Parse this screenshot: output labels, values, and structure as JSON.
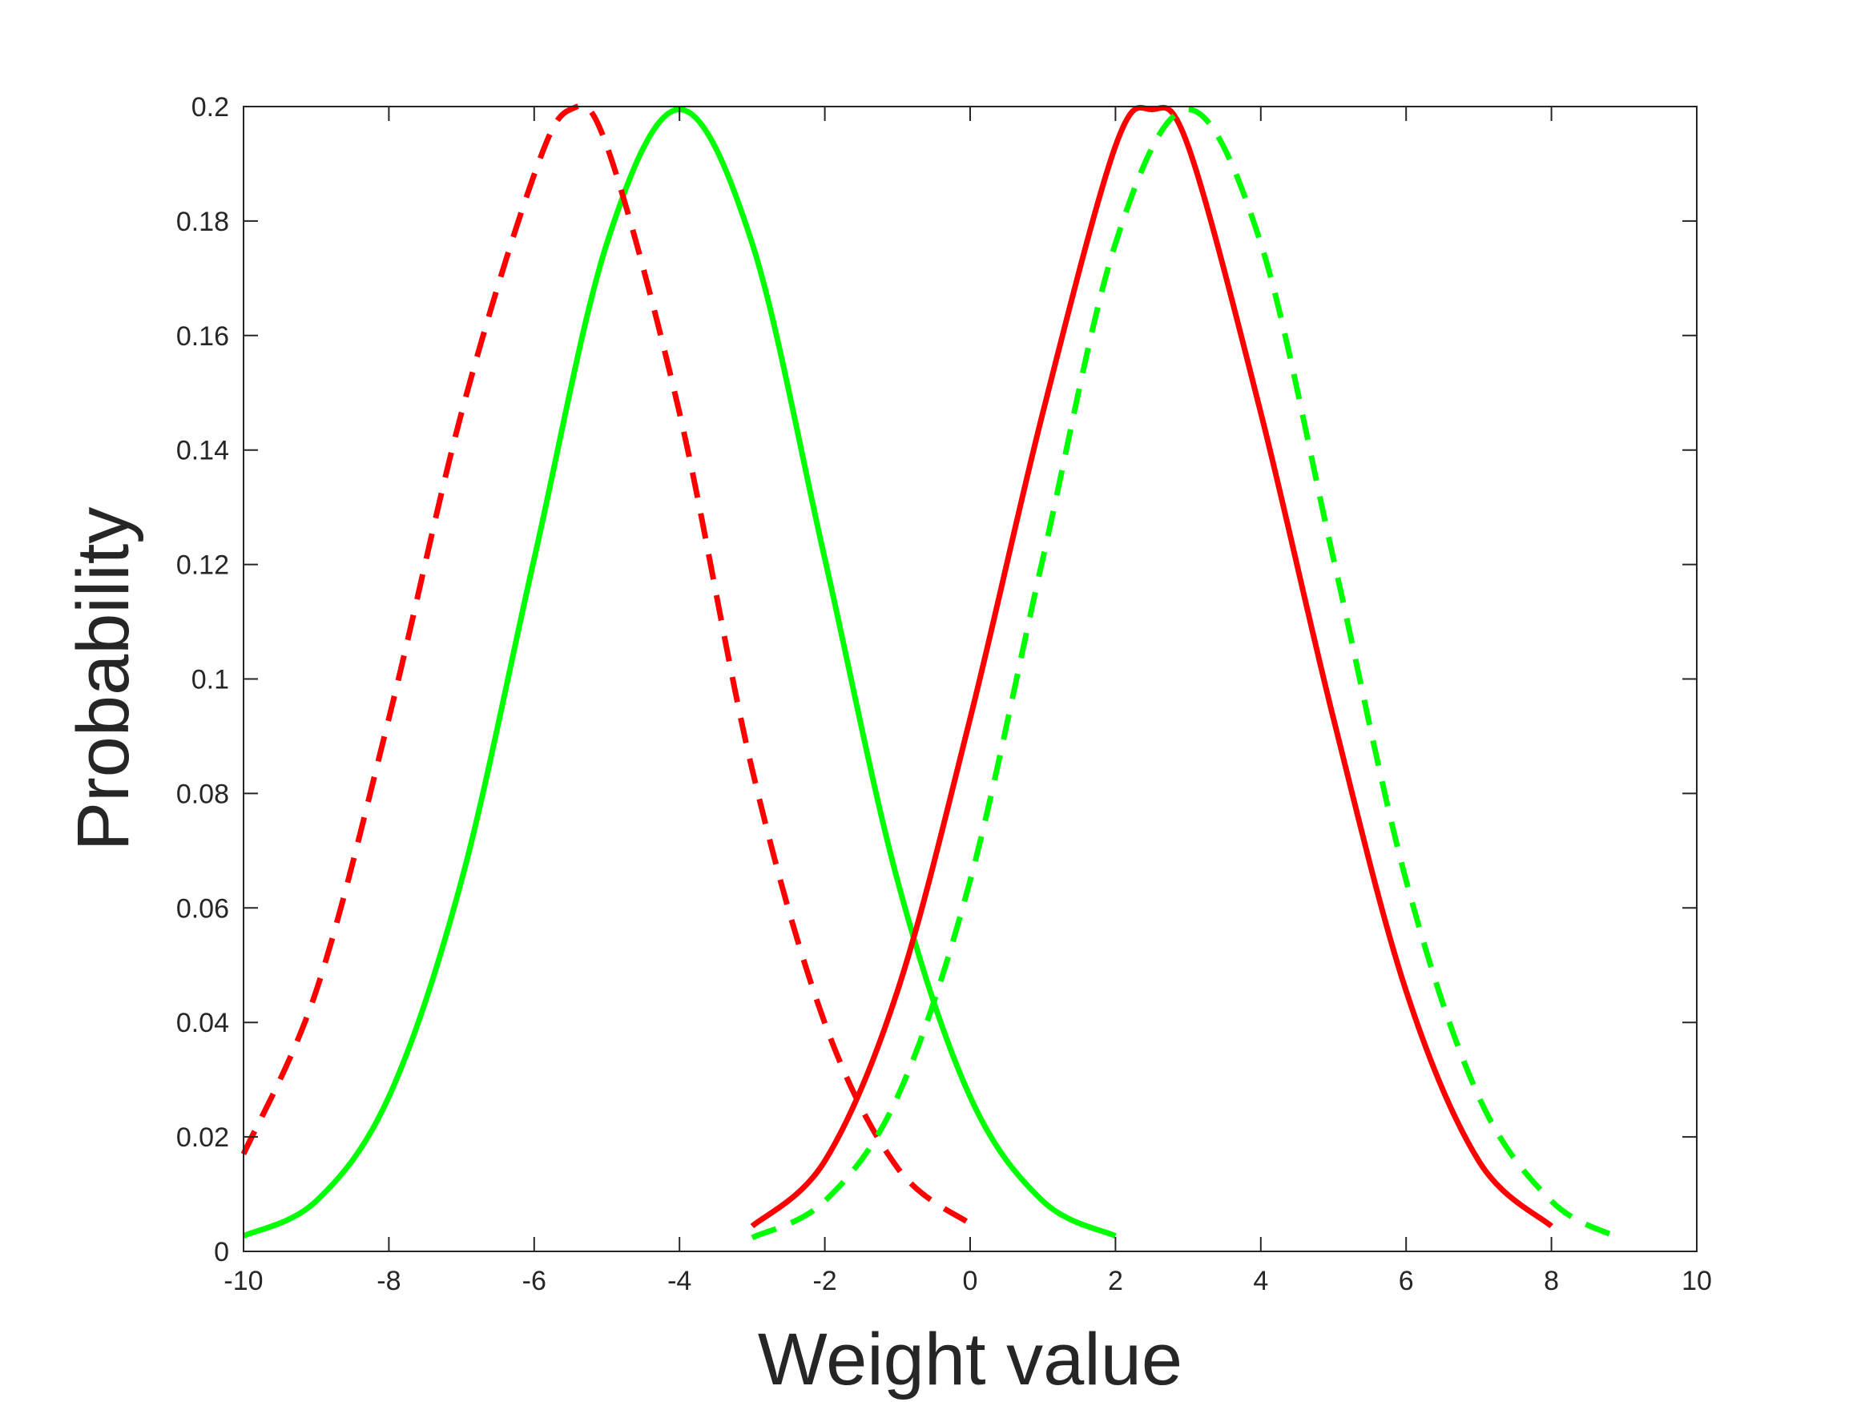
{
  "chart_data": {
    "type": "line",
    "title": "",
    "xlabel": "Weight value",
    "ylabel": "Probability",
    "xlim": [
      -10,
      10
    ],
    "ylim": [
      0,
      0.2
    ],
    "x_ticks": [
      "-10",
      "-8",
      "-6",
      "-4",
      "-2",
      "0",
      "2",
      "4",
      "6",
      "8",
      "10"
    ],
    "y_ticks": [
      "0",
      "0.02",
      "0.04",
      "0.06",
      "0.08",
      "0.1",
      "0.12",
      "0.14",
      "0.16",
      "0.18",
      "0.2"
    ],
    "grid": false,
    "legend": "none",
    "series": [
      {
        "color": "#00ff00",
        "style": "solid",
        "x": [
          -10,
          -9,
          -8,
          -7,
          -6,
          -5,
          -4,
          -3,
          -2,
          -1,
          0,
          1,
          2
        ],
        "y": [
          0.0027,
          0.0088,
          0.027,
          0.0648,
          0.121,
          0.1761,
          0.1995,
          0.1761,
          0.121,
          0.0648,
          0.027,
          0.0088,
          0.0027
        ]
      },
      {
        "color": "#ff0000",
        "style": "dashed",
        "x": [
          -10,
          -9,
          -8,
          -7,
          -6,
          -5.5,
          -5,
          -4,
          -3,
          -2,
          -1,
          0
        ],
        "y": [
          0.017,
          0.0455,
          0.0931,
          0.1465,
          0.1881,
          0.1995,
          0.1931,
          0.1465,
          0.0842,
          0.0399,
          0.0146,
          0.0048
        ]
      },
      {
        "color": "#ff0000",
        "style": "solid",
        "x": [
          -3,
          -2,
          -1,
          0,
          1,
          2,
          2.5,
          3,
          4,
          5,
          6,
          7,
          8
        ],
        "y": [
          0.0044,
          0.0158,
          0.0455,
          0.0931,
          0.1465,
          0.1931,
          0.1995,
          0.1931,
          0.1465,
          0.0931,
          0.0455,
          0.0158,
          0.0044
        ]
      },
      {
        "color": "#00ff00",
        "style": "dashed",
        "x": [
          -3,
          -2,
          -1,
          0,
          1,
          2,
          3,
          4,
          5,
          6,
          7,
          8,
          8.9
        ],
        "y": [
          0.0024,
          0.0088,
          0.027,
          0.0648,
          0.121,
          0.1761,
          0.1995,
          0.1761,
          0.121,
          0.0648,
          0.027,
          0.0088,
          0.0025
        ]
      }
    ]
  },
  "colors": {
    "axis": "#262626",
    "background": "#ffffff"
  }
}
